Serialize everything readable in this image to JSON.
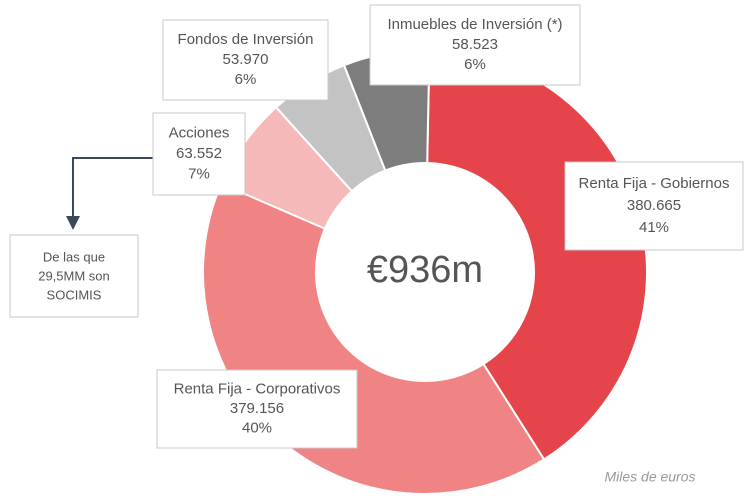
{
  "chart_data": {
    "type": "pie",
    "categories": [
      "Renta Fija - Gobiernos",
      "Renta Fija - Corporativos",
      "Acciones",
      "Fondos de Inversión",
      "Inmuebles de Inversión (*)"
    ],
    "values": [
      380665,
      379156,
      63552,
      53970,
      58523
    ],
    "value_labels": [
      "380.665",
      "379.156",
      "63.552",
      "53.970",
      "58.523"
    ],
    "percentages": [
      41,
      40,
      7,
      6,
      6
    ],
    "percentage_labels": [
      "41%",
      "40%",
      "7%",
      "6%",
      "6%"
    ],
    "colors": [
      "#e5444a",
      "#f08384",
      "#f6b9b9",
      "#c3c3c3",
      "#7d7d7d"
    ],
    "center_label": "€936m",
    "note": [
      "De las que",
      "29,5MM son",
      "SOCIMIS"
    ],
    "units_label": "Miles de euros"
  }
}
